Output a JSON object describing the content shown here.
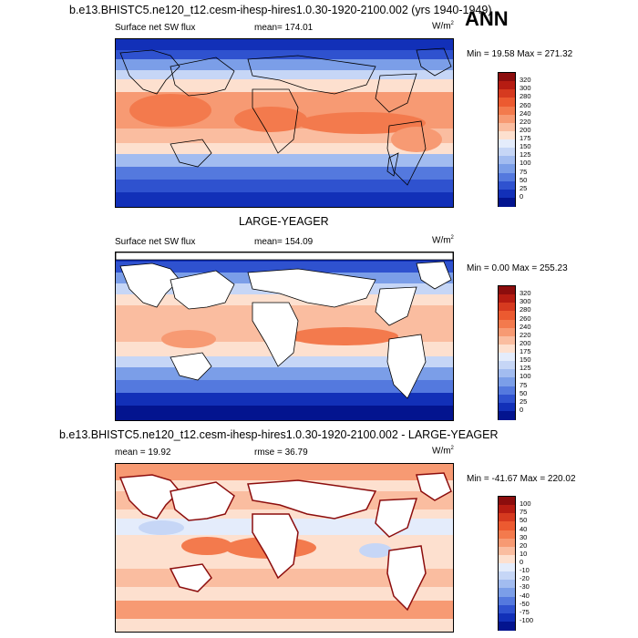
{
  "title": "b.e13.BHISTC5.ne120_t12.cesm-ihesp-hires1.0.30-1920-2100.002 (yrs 1940-1949)",
  "season": "ANN",
  "panels": [
    {
      "id": "model",
      "subtitle": "",
      "variable_label": "Surface net SW flux",
      "stat_label": "mean= 174.01",
      "units_base": "W/m",
      "units_sup": "2",
      "minmax_label": "Min =  19.58 Max = 271.32",
      "colorbar": {
        "levels": [
          "320",
          "300",
          "280",
          "260",
          "240",
          "220",
          "200",
          "175",
          "150",
          "125",
          "100",
          "75",
          "50",
          "25",
          "0"
        ],
        "colors": [
          "#8c0d0d",
          "#b61c12",
          "#d63a1f",
          "#ec5a30",
          "#f37a4d",
          "#f79a73",
          "#fabda0",
          "#fde0cf",
          "#e4ecfb",
          "#c6d6f6",
          "#a2bcf0",
          "#7b9ee8",
          "#5479de",
          "#2f52cf",
          "#1230b8",
          "#03148f"
        ]
      }
    },
    {
      "id": "obs",
      "subtitle": "LARGE-YEAGER",
      "variable_label": "Surface net SW flux",
      "stat_label": "mean= 154.09",
      "units_base": "W/m",
      "units_sup": "2",
      "minmax_label": "Min =   0.00 Max = 255.23",
      "colorbar": {
        "levels": [
          "320",
          "300",
          "280",
          "260",
          "240",
          "220",
          "200",
          "175",
          "150",
          "125",
          "100",
          "75",
          "50",
          "25",
          "0"
        ],
        "colors": [
          "#8c0d0d",
          "#b61c12",
          "#d63a1f",
          "#ec5a30",
          "#f37a4d",
          "#f79a73",
          "#fabda0",
          "#fde0cf",
          "#e4ecfb",
          "#c6d6f6",
          "#a2bcf0",
          "#7b9ee8",
          "#5479de",
          "#2f52cf",
          "#1230b8",
          "#03148f"
        ]
      }
    },
    {
      "id": "diff",
      "subtitle": "b.e13.BHISTC5.ne120_t12.cesm-ihesp-hires1.0.30-1920-2100.002 - LARGE-YEAGER",
      "variable_label": "mean =  19.92",
      "stat_label": "rmse =  36.79",
      "units_base": "W/m",
      "units_sup": "2",
      "minmax_label": "Min = -41.67 Max = 220.02",
      "colorbar": {
        "levels": [
          "100",
          "75",
          "50",
          "40",
          "30",
          "20",
          "10",
          "0",
          "-10",
          "-20",
          "-30",
          "-40",
          "-50",
          "-75",
          "-100"
        ],
        "colors": [
          "#8c0d0d",
          "#b61c12",
          "#d63a1f",
          "#ec5a30",
          "#f37a4d",
          "#f79a73",
          "#fabda0",
          "#fde0cf",
          "#e4ecfb",
          "#c6d6f6",
          "#a2bcf0",
          "#7b9ee8",
          "#5479de",
          "#2f52cf",
          "#1230b8",
          "#03148f"
        ]
      }
    }
  ]
}
